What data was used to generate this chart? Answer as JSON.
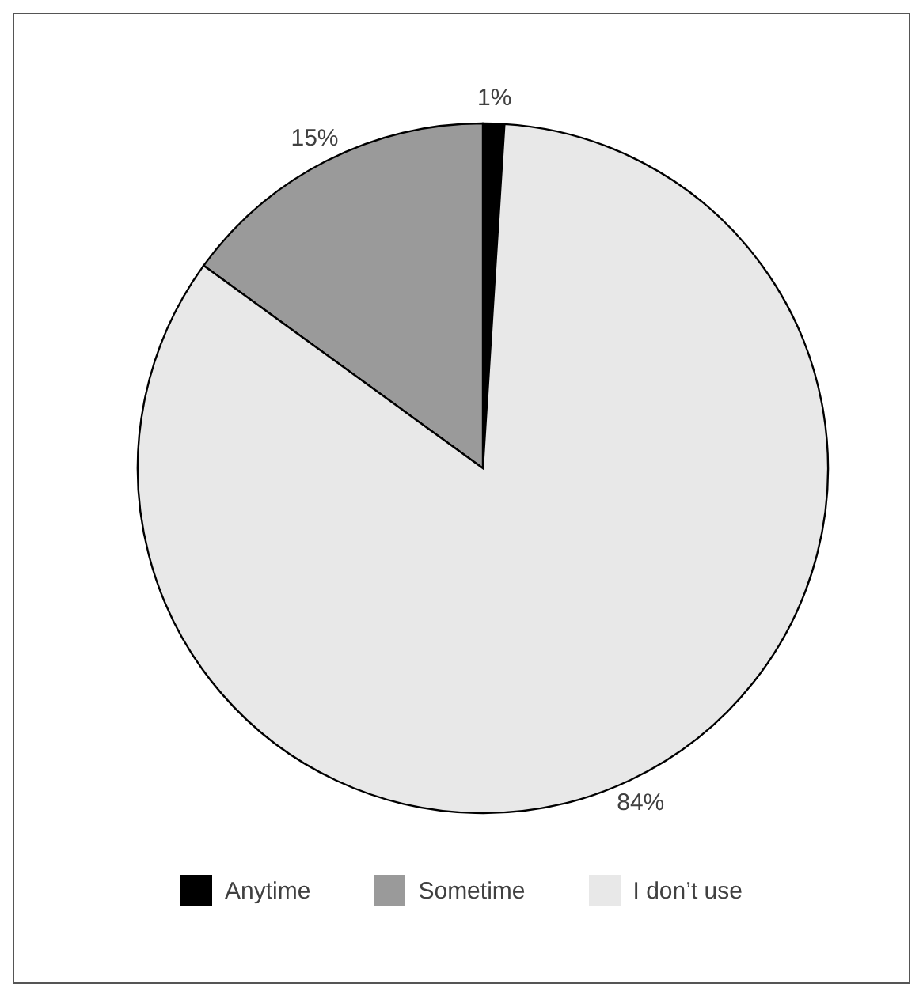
{
  "chart_data": {
    "type": "pie",
    "categories": [
      "Anytime",
      "Sometime",
      "I don’t use"
    ],
    "values": [
      1,
      15,
      84
    ],
    "colors": [
      "#000000",
      "#9a9a9a",
      "#e8e8e8"
    ],
    "value_labels": [
      "1%",
      "15%",
      "84%"
    ],
    "legend": "bottom"
  }
}
